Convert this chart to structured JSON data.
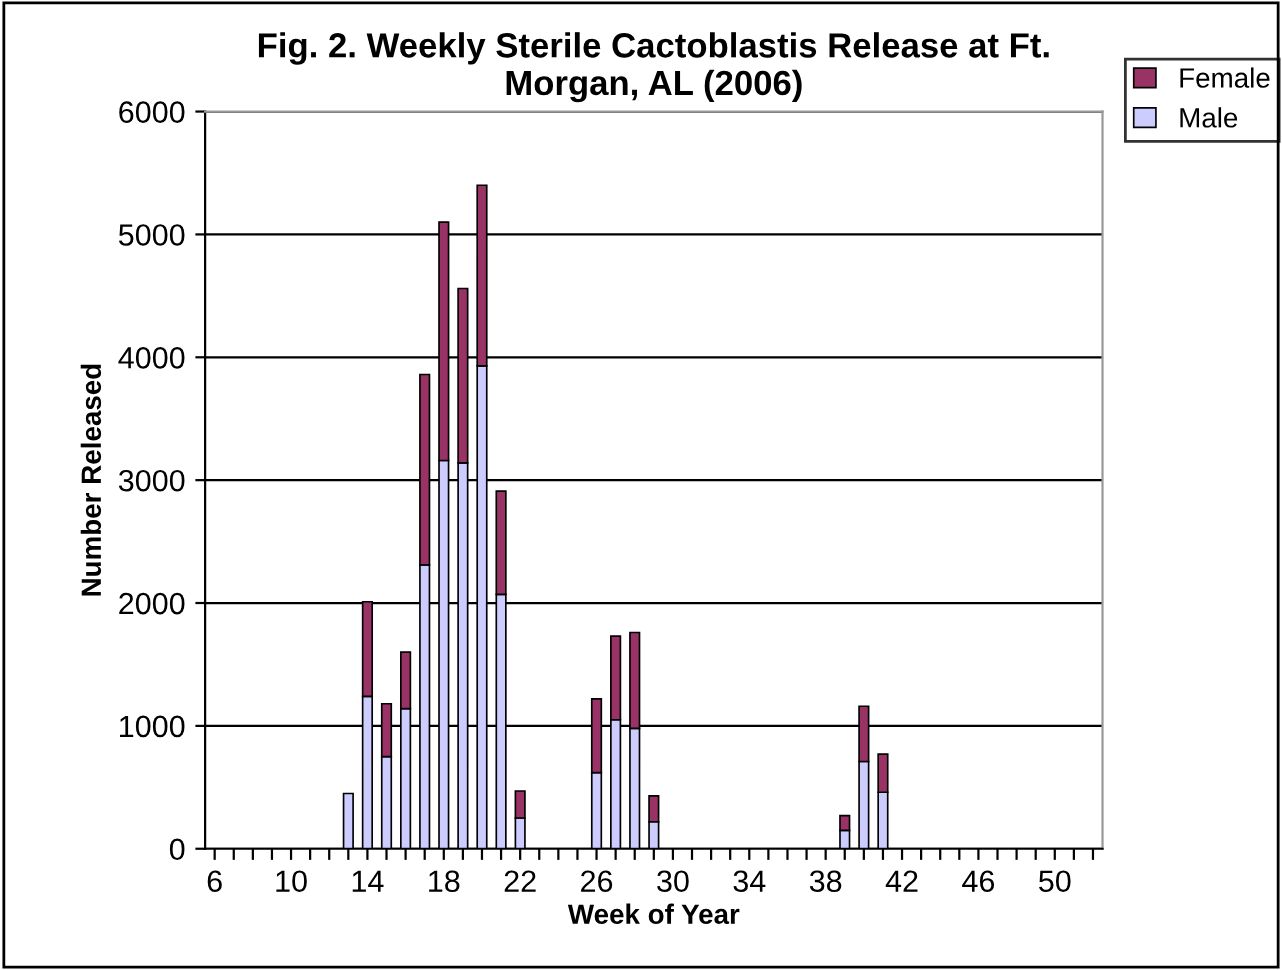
{
  "chart_data": {
    "type": "bar",
    "stacked": true,
    "title": "Fig. 2. Weekly Sterile Cactoblastis Release at Ft. Morgan, AL (2006)",
    "xlabel": "Week of Year",
    "ylabel": "Number Released",
    "categories": [
      "6",
      null,
      null,
      null,
      "10",
      null,
      null,
      null,
      "14",
      null,
      null,
      null,
      "18",
      null,
      null,
      null,
      "22",
      null,
      null,
      null,
      "26",
      null,
      null,
      null,
      "30",
      null,
      null,
      null,
      "34",
      null,
      null,
      null,
      "38",
      null,
      null,
      null,
      "42",
      null,
      null,
      null,
      "46",
      null,
      null,
      null,
      "50",
      null,
      null
    ],
    "series": [
      {
        "name": "Male",
        "color": "#ccccff",
        "values": [
          0,
          0,
          0,
          0,
          0,
          0,
          0,
          450,
          1240,
          750,
          1140,
          2310,
          3160,
          3140,
          3930,
          2070,
          250,
          0,
          0,
          0,
          620,
          1050,
          980,
          220,
          0,
          0,
          0,
          0,
          0,
          0,
          0,
          0,
          0,
          150,
          710,
          460,
          0,
          0,
          0,
          0,
          0,
          0,
          0,
          0,
          0,
          0,
          0
        ]
      },
      {
        "name": "Female",
        "color": "#993366",
        "values": [
          0,
          0,
          0,
          0,
          0,
          0,
          0,
          0,
          770,
          430,
          460,
          1550,
          1940,
          1420,
          1470,
          840,
          220,
          0,
          0,
          0,
          600,
          680,
          780,
          210,
          0,
          0,
          0,
          0,
          0,
          0,
          0,
          0,
          0,
          120,
          450,
          310,
          0,
          0,
          0,
          0,
          0,
          0,
          0,
          0,
          0,
          0,
          0
        ]
      }
    ],
    "ylim": [
      0,
      6000
    ],
    "yticks": [
      0,
      1000,
      2000,
      3000,
      4000,
      5000,
      6000
    ],
    "grid": "y",
    "legend": "top right"
  }
}
